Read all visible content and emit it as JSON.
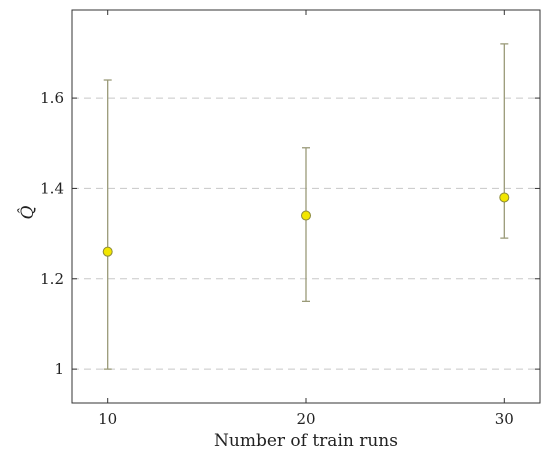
{
  "chart_data": {
    "type": "scatter",
    "xlabel": "Number of train runs",
    "ylabel": "Q̂",
    "x": [
      10,
      20,
      30
    ],
    "y": [
      1.26,
      1.34,
      1.38
    ],
    "error_low": [
      1.0,
      1.15,
      1.29
    ],
    "error_high": [
      1.64,
      1.49,
      1.72
    ],
    "xlim": [
      8.2,
      31.8
    ],
    "ylim": [
      0.925,
      1.795
    ],
    "xticks": [
      10,
      20,
      30
    ],
    "xtick_labels": [
      "10",
      "20",
      "30"
    ],
    "yticks": [
      1.0,
      1.2,
      1.4,
      1.6
    ],
    "ytick_labels": [
      "1",
      "1.2",
      "1.4",
      "1.6"
    ],
    "grid": "horizontal-dashed",
    "colors": {
      "marker_fill": "#f2e600",
      "marker_stroke": "#8c8a3a",
      "errorbar": "#9a9a78",
      "grid": "#c8c8c8",
      "axis": "#333333"
    }
  }
}
